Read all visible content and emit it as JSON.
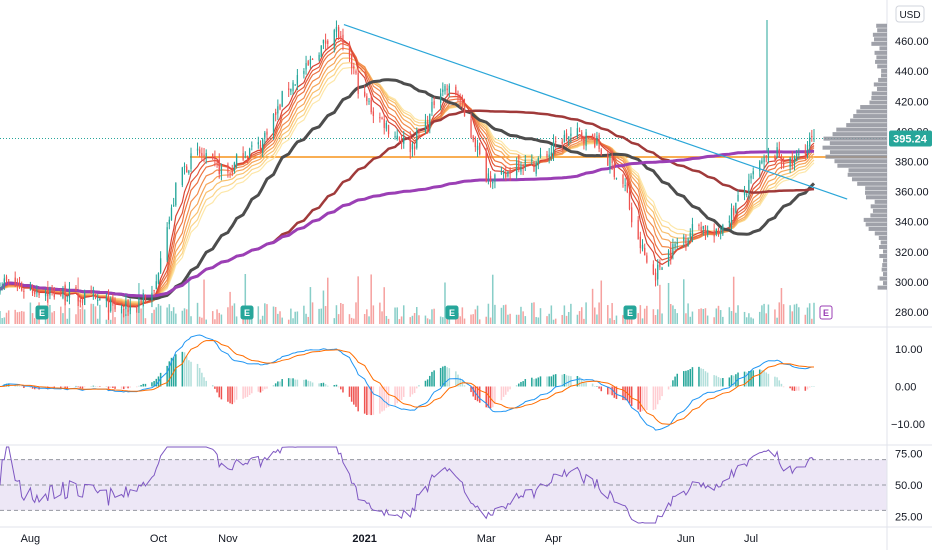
{
  "chart_data": {
    "type": "candlestick",
    "currency": "USD",
    "last_price_label": "395.24",
    "last_price": 395.24,
    "horizontal_level": 383,
    "price_axis": {
      "ticks": [
        "460.00",
        "440.00",
        "420.00",
        "400.00",
        "380.00",
        "360.00",
        "340.00",
        "320.00",
        "300.00",
        "280.00"
      ],
      "ylim": [
        272,
        474
      ]
    },
    "macd_axis": {
      "ticks": [
        "10.00",
        "0.00",
        "−10.00"
      ],
      "ylim": [
        -15,
        15
      ]
    },
    "rsi_axis": {
      "ticks": [
        "75.00",
        "50.00",
        "25.00"
      ],
      "ylim": [
        20,
        80
      ],
      "band": [
        30,
        70
      ]
    },
    "x_labels": [
      "Aug",
      "Oct",
      "Nov",
      "2021",
      "Mar",
      "Apr",
      "Jun",
      "Jul"
    ],
    "earnings_markers": [
      "E",
      "E",
      "E",
      "E",
      "E"
    ],
    "price_anchors": [
      [
        "2020-07-20",
        300
      ],
      [
        "2020-08-03",
        295
      ],
      [
        "2020-08-17",
        292
      ],
      [
        "2020-08-31",
        288
      ],
      [
        "2020-09-14",
        282
      ],
      [
        "2020-09-28",
        290
      ],
      [
        "2020-10-05",
        340
      ],
      [
        "2020-10-12",
        375
      ],
      [
        "2020-10-19",
        385
      ],
      [
        "2020-10-26",
        378
      ],
      [
        "2020-11-02",
        372
      ],
      [
        "2020-11-09",
        386
      ],
      [
        "2020-11-16",
        390
      ],
      [
        "2020-11-23",
        410
      ],
      [
        "2020-11-30",
        430
      ],
      [
        "2020-12-07",
        440
      ],
      [
        "2020-12-14",
        455
      ],
      [
        "2020-12-21",
        468
      ],
      [
        "2020-12-28",
        445
      ],
      [
        "2021-01-04",
        420
      ],
      [
        "2021-01-11",
        408
      ],
      [
        "2021-01-18",
        398
      ],
      [
        "2021-01-25",
        390
      ],
      [
        "2021-02-01",
        405
      ],
      [
        "2021-02-08",
        430
      ],
      [
        "2021-02-15",
        425
      ],
      [
        "2021-02-22",
        398
      ],
      [
        "2021-03-01",
        372
      ],
      [
        "2021-03-08",
        368
      ],
      [
        "2021-03-15",
        380
      ],
      [
        "2021-03-22",
        378
      ],
      [
        "2021-03-29",
        385
      ],
      [
        "2021-04-05",
        395
      ],
      [
        "2021-04-12",
        398
      ],
      [
        "2021-04-19",
        395
      ],
      [
        "2021-04-26",
        380
      ],
      [
        "2021-05-03",
        365
      ],
      [
        "2021-05-10",
        325
      ],
      [
        "2021-05-17",
        305
      ],
      [
        "2021-05-24",
        320
      ],
      [
        "2021-05-31",
        330
      ],
      [
        "2021-06-07",
        338
      ],
      [
        "2021-06-14",
        330
      ],
      [
        "2021-06-21",
        345
      ],
      [
        "2021-06-28",
        360
      ],
      [
        "2021-07-05",
        378
      ],
      [
        "2021-07-12",
        385
      ],
      [
        "2021-07-19",
        378
      ],
      [
        "2021-07-26",
        390
      ],
      [
        "2021-07-30",
        395.24
      ]
    ],
    "trendline_points": [
      [
        0.369,
        471
      ],
      [
        0.909,
        355
      ]
    ],
    "moving_averages": [
      {
        "color": "#4d4d4d"
      },
      {
        "color": "#a03a3a"
      },
      {
        "color": "#9b3fb5"
      },
      {
        "color": "#e84a2c"
      },
      {
        "color": "#f5c06e"
      }
    ],
    "colors": {
      "up": "#26a69a",
      "down": "#ef5350",
      "level": "#f7931a",
      "trend": "#2aa6d8",
      "rsi": "#7e57c2",
      "rsi_band": "#ede7f6",
      "macd": "#2196f3",
      "signal": "#ff6d00",
      "volume_profile": "#8e919a"
    }
  }
}
